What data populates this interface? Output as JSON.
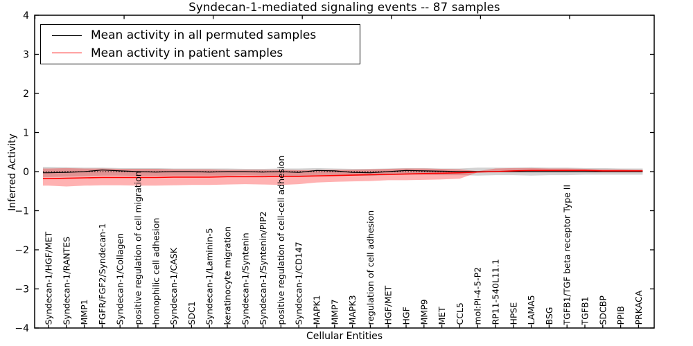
{
  "figure": {
    "title": "Syndecan-1-mediated signaling events -- 87 samples",
    "xlabel": "Cellular Entities",
    "ylabel": "Inferred Activity"
  },
  "legend": {
    "entries": [
      {
        "label": "Mean activity in all permuted samples",
        "color": "#000000"
      },
      {
        "label": "Mean activity in patient samples",
        "color": "#ff0000"
      }
    ],
    "position": "upper left"
  },
  "colors": {
    "permuted_line": "#000000",
    "patient_line": "#ff0000",
    "permuted_band": "rgba(128,128,128,0.35)",
    "patient_band": "rgba(255,0,0,0.30)",
    "zero_line": "#000000",
    "axis": "#000000",
    "background": "#ffffff"
  },
  "chart_data": {
    "type": "line",
    "title": "Syndecan-1-mediated signaling events -- 87 samples",
    "xlabel": "Cellular Entities",
    "ylabel": "Inferred Activity",
    "ylim": [
      -4,
      4
    ],
    "yticks": [
      4,
      3,
      2,
      1,
      0,
      -1,
      -2,
      -3,
      -4
    ],
    "ytick_labels": [
      "4",
      "3",
      "2",
      "1",
      "0",
      "−1",
      "−2",
      "−3",
      "−4"
    ],
    "grid": false,
    "zero_line": true,
    "legend_position": "upper left",
    "categories": [
      "Syndecan-1/HGF/MET",
      "Syndecan-1/RANTES",
      "MMP1",
      "FGFR/FGF2/Syndecan-1",
      "Syndecan-1/Collagen",
      "positive regulation of cell migration",
      "homophilic cell adhesion",
      "Syndecan-1/CASK",
      "SDC1",
      "Syndecan-1/Laminin-5",
      "keratinocyte migration",
      "Syndecan-1/Syntenin",
      "Syndecan-1/Syntenin/PIP2",
      "positive regulation of cell-cell adhesion",
      "Syndecan-1/CD147",
      "MAPK1",
      "MMP7",
      "MAPK3",
      "regulation of cell adhesion",
      "HGF/MET",
      "HGF",
      "MMP9",
      "MET",
      "CCL5",
      "mol:PI-4-5-P2",
      "RP11-540L11.1",
      "HPSE",
      "LAMA5",
      "BSG",
      "TGFB1/TGF beta receptor Type II",
      "TGFB1",
      "SDCBP",
      "PPIB",
      "PRKACA"
    ],
    "series": [
      {
        "name": "Mean activity in all permuted samples",
        "color": "#000000",
        "line_width": 1.2,
        "values": [
          -0.03,
          -0.02,
          0.0,
          0.04,
          0.02,
          0.0,
          -0.01,
          0.0,
          0.0,
          -0.01,
          0.0,
          0.0,
          -0.01,
          0.0,
          -0.02,
          0.03,
          0.02,
          -0.02,
          -0.03,
          0.0,
          0.03,
          0.02,
          0.01,
          0.0,
          0.0,
          0.0,
          0.0,
          0.0,
          0.0,
          0.0,
          0.0,
          0.0,
          0.0,
          0.0
        ],
        "band_hi": [
          0.12,
          0.11,
          0.1,
          0.1,
          0.09,
          0.09,
          0.09,
          0.08,
          0.08,
          0.08,
          0.08,
          0.07,
          0.07,
          0.08,
          0.08,
          0.09,
          0.08,
          0.07,
          0.07,
          0.08,
          0.09,
          0.09,
          0.08,
          0.08,
          0.1,
          0.1,
          0.1,
          0.11,
          0.1,
          0.1,
          0.09,
          0.09,
          0.08,
          0.08
        ],
        "band_lo": [
          -0.14,
          -0.13,
          -0.12,
          -0.1,
          -0.1,
          -0.11,
          -0.11,
          -0.1,
          -0.1,
          -0.1,
          -0.1,
          -0.09,
          -0.1,
          -0.1,
          -0.11,
          -0.09,
          -0.09,
          -0.1,
          -0.11,
          -0.09,
          -0.08,
          -0.08,
          -0.09,
          -0.09,
          -0.1,
          -0.09,
          -0.09,
          -0.1,
          -0.09,
          -0.09,
          -0.08,
          -0.08,
          -0.08,
          -0.08
        ],
        "band_color": "rgba(128,128,128,0.35)"
      },
      {
        "name": "Mean activity in patient samples",
        "color": "#ff0000",
        "line_width": 1.6,
        "values": [
          -0.18,
          -0.17,
          -0.16,
          -0.15,
          -0.15,
          -0.15,
          -0.15,
          -0.14,
          -0.14,
          -0.14,
          -0.13,
          -0.13,
          -0.13,
          -0.12,
          -0.12,
          -0.11,
          -0.1,
          -0.09,
          -0.08,
          -0.07,
          -0.06,
          -0.05,
          -0.04,
          -0.03,
          -0.01,
          0.0,
          0.02,
          0.03,
          0.03,
          0.03,
          0.03,
          0.02,
          0.02,
          0.02
        ],
        "band_hi": [
          0.08,
          0.09,
          0.08,
          0.08,
          0.07,
          0.07,
          0.07,
          0.06,
          0.06,
          0.06,
          0.05,
          0.05,
          0.05,
          0.05,
          0.04,
          0.04,
          0.05,
          0.05,
          0.06,
          0.07,
          0.08,
          0.08,
          0.07,
          0.06,
          0.01,
          0.08,
          0.09,
          0.09,
          0.08,
          0.08,
          0.07,
          0.06,
          0.06,
          0.05
        ],
        "band_lo": [
          -0.36,
          -0.38,
          -0.36,
          -0.35,
          -0.35,
          -0.36,
          -0.36,
          -0.35,
          -0.34,
          -0.34,
          -0.33,
          -0.32,
          -0.33,
          -0.34,
          -0.32,
          -0.28,
          -0.26,
          -0.25,
          -0.24,
          -0.22,
          -0.22,
          -0.21,
          -0.2,
          -0.18,
          -0.02,
          -0.01,
          0.0,
          -0.01,
          0.0,
          0.0,
          -0.01,
          0.0,
          0.0,
          -0.01
        ],
        "band_color": "rgba(255,0,0,0.30)"
      }
    ]
  }
}
